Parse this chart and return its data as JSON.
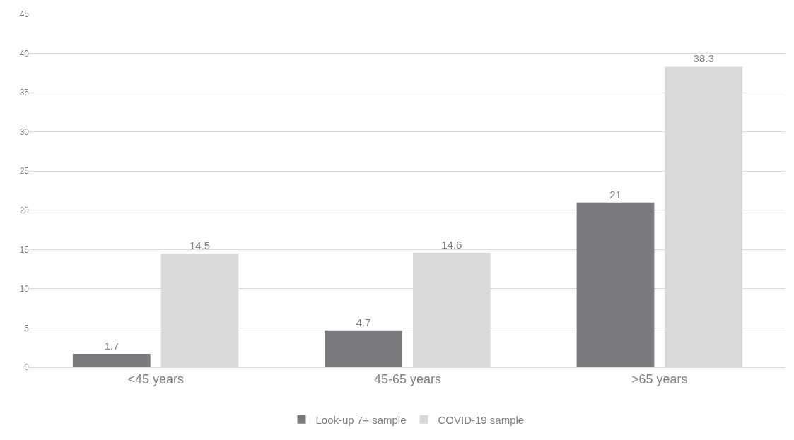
{
  "chart_data": {
    "type": "bar",
    "categories": [
      "<45 years",
      "45-65 years",
      ">65 years"
    ],
    "series": [
      {
        "name": "Look-up 7+ sample",
        "color": "#7a7a7e",
        "values": [
          1.7,
          4.7,
          21
        ]
      },
      {
        "name": "COVID-19 sample",
        "color": "#d9d9d9",
        "values": [
          14.5,
          14.6,
          38.3
        ]
      }
    ],
    "ylim": [
      0,
      45
    ],
    "yticks": [
      0,
      5,
      10,
      15,
      20,
      25,
      30,
      35,
      40,
      45
    ],
    "grid": "y",
    "legend": "bottom",
    "data_labels": true
  }
}
